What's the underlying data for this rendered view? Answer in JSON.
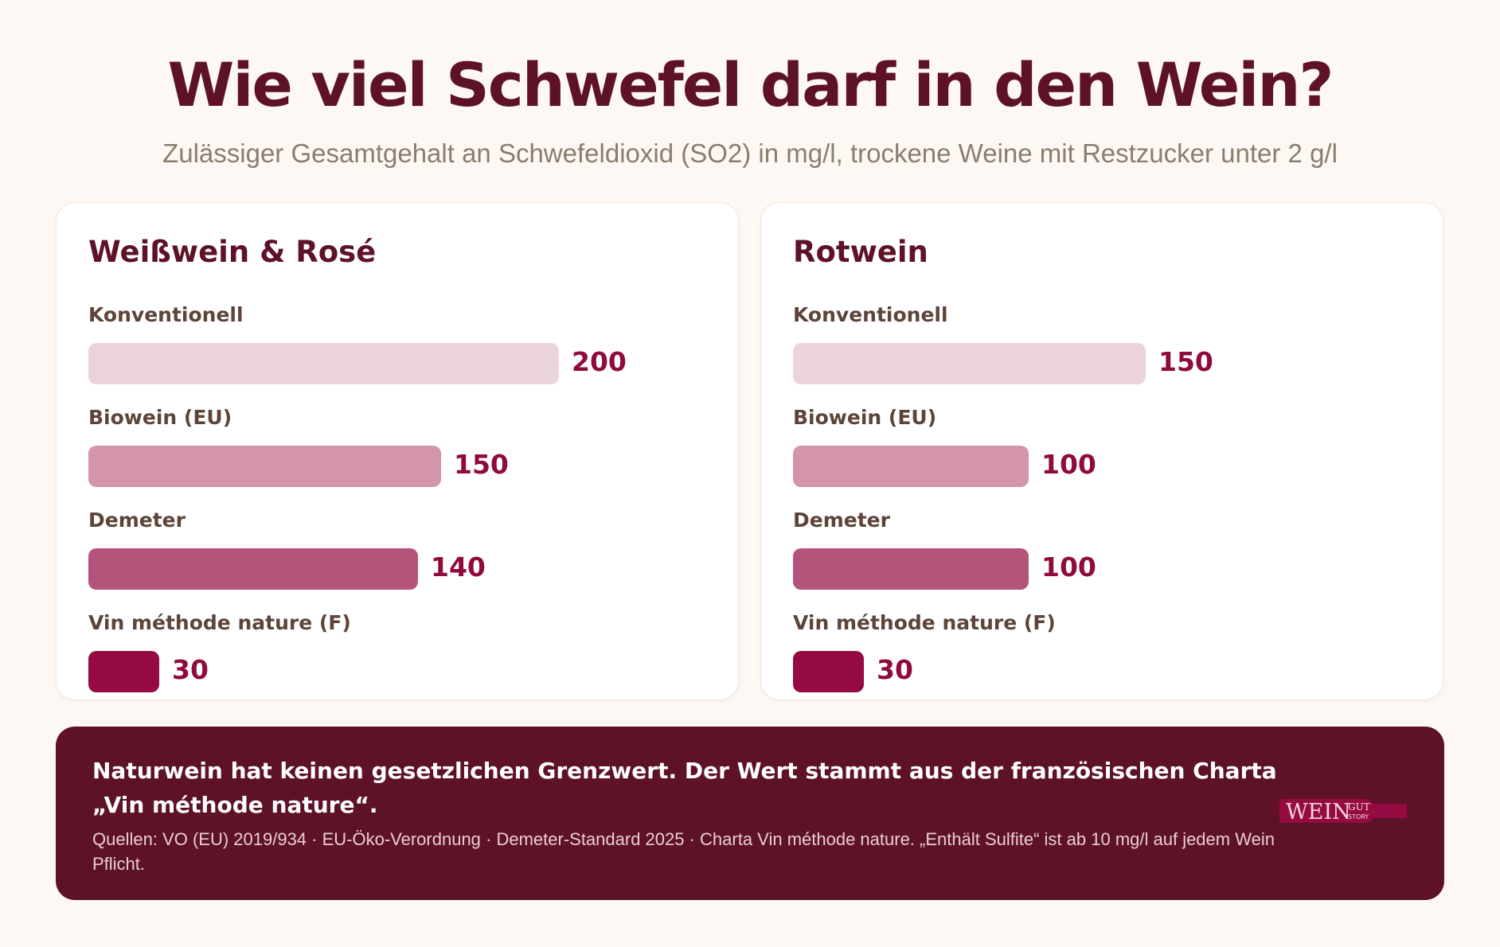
{
  "title": "Wie viel Schwefel darf in den Wein?",
  "subtitle": "Zulässiger Gesamtgehalt an Schwefeldioxid (SO2) in mg/l, trockene Weine mit Restzucker unter 2 g/l",
  "colors": {
    "Konventionell": "#ebd3dd",
    "Biowein (EU)": "#d494ac",
    "Demeter": "#b5547b",
    "Vin méthode nature (F)": "#950a40",
    "value_text": "#8f0a3d",
    "title": "#5e1228",
    "footer_bg": "#5e1228"
  },
  "chart_data": [
    {
      "type": "bar",
      "orientation": "horizontal",
      "title": "Weißwein & Rosé",
      "categories": [
        "Konventionell",
        "Biowein (EU)",
        "Demeter",
        "Vin méthode nature (F)"
      ],
      "values": [
        200,
        150,
        140,
        30
      ],
      "value_labels": [
        "200",
        "150",
        "140",
        "30"
      ],
      "xlim": [
        0,
        200
      ],
      "grid": false
    },
    {
      "type": "bar",
      "orientation": "horizontal",
      "title": "Rotwein",
      "categories": [
        "Konventionell",
        "Biowein (EU)",
        "Demeter",
        "Vin méthode nature (F)"
      ],
      "values": [
        150,
        100,
        100,
        30
      ],
      "value_labels": [
        "150",
        "100",
        "100",
        "30"
      ],
      "xlim": [
        0,
        200
      ],
      "grid": false
    }
  ],
  "footer": {
    "note": "Naturwein hat keinen gesetzlichen Grenzwert. Der Wert stammt aus der französischen Charta „Vin méthode nature“.",
    "sources": "Quellen: VO (EU) 2019/934 · EU-Öko-Verordnung  · Demeter-Standard 2025 · Charta Vin méthode nature. „Enthält Sulfite“ ist ab 10 mg/l auf jedem Wein Pflicht.",
    "logo_text": "WEIN",
    "logo_small_top": "GUT",
    "logo_small_bottom": "STORY"
  }
}
